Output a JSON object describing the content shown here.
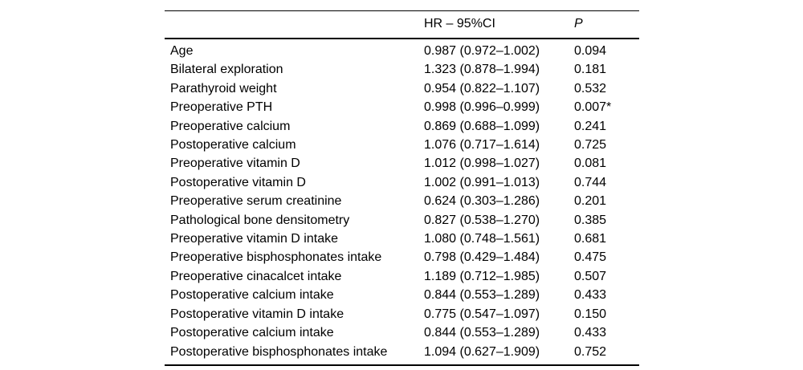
{
  "table": {
    "columns": {
      "label_header": "",
      "hr_ci_header": "HR – 95%CI",
      "p_header": "P"
    },
    "rows": [
      {
        "label": "Age",
        "hr_ci": "0.987 (0.972–1.002)",
        "p": "0.094"
      },
      {
        "label": "Bilateral exploration",
        "hr_ci": "1.323 (0.878–1.994)",
        "p": "0.181"
      },
      {
        "label": "Parathyroid weight",
        "hr_ci": "0.954 (0.822–1.107)",
        "p": "0.532"
      },
      {
        "label": "Preoperative PTH",
        "hr_ci": "0.998 (0.996–0.999)",
        "p": "0.007*"
      },
      {
        "label": "Preoperative calcium",
        "hr_ci": "0.869 (0.688–1.099)",
        "p": "0.241"
      },
      {
        "label": "Postoperative calcium",
        "hr_ci": "1.076 (0.717–1.614)",
        "p": "0.725"
      },
      {
        "label": "Preoperative vitamin D",
        "hr_ci": "1.012 (0.998–1.027)",
        "p": "0.081"
      },
      {
        "label": "Postoperative vitamin D",
        "hr_ci": "1.002 (0.991–1.013)",
        "p": "0.744"
      },
      {
        "label": "Preoperative serum creatinine",
        "hr_ci": "0.624 (0.303–1.286)",
        "p": "0.201"
      },
      {
        "label": "Pathological bone densitometry",
        "hr_ci": "0.827 (0.538–1.270)",
        "p": "0.385"
      },
      {
        "label": "Preoperative vitamin D intake",
        "hr_ci": "1.080 (0.748–1.561)",
        "p": "0.681"
      },
      {
        "label": "Preoperative bisphosphonates intake",
        "hr_ci": "0.798 (0.429–1.484)",
        "p": "0.475"
      },
      {
        "label": "Preoperative cinacalcet intake",
        "hr_ci": "1.189 (0.712–1.985)",
        "p": "0.507"
      },
      {
        "label": "Postoperative calcium intake",
        "hr_ci": "0.844 (0.553–1.289)",
        "p": "0.433"
      },
      {
        "label": "Postoperative vitamin D intake",
        "hr_ci": "0.775 (0.547–1.097)",
        "p": "0.150"
      },
      {
        "label": "Postoperative calcium intake",
        "hr_ci": "0.844 (0.553–1.289)",
        "p": "0.433"
      },
      {
        "label": "Postoperative bisphosphonates intake",
        "hr_ci": "1.094 (0.627–1.909)",
        "p": "0.752"
      }
    ],
    "text_color": "#000000",
    "rule_color": "#000000",
    "background_color": "#ffffff"
  }
}
